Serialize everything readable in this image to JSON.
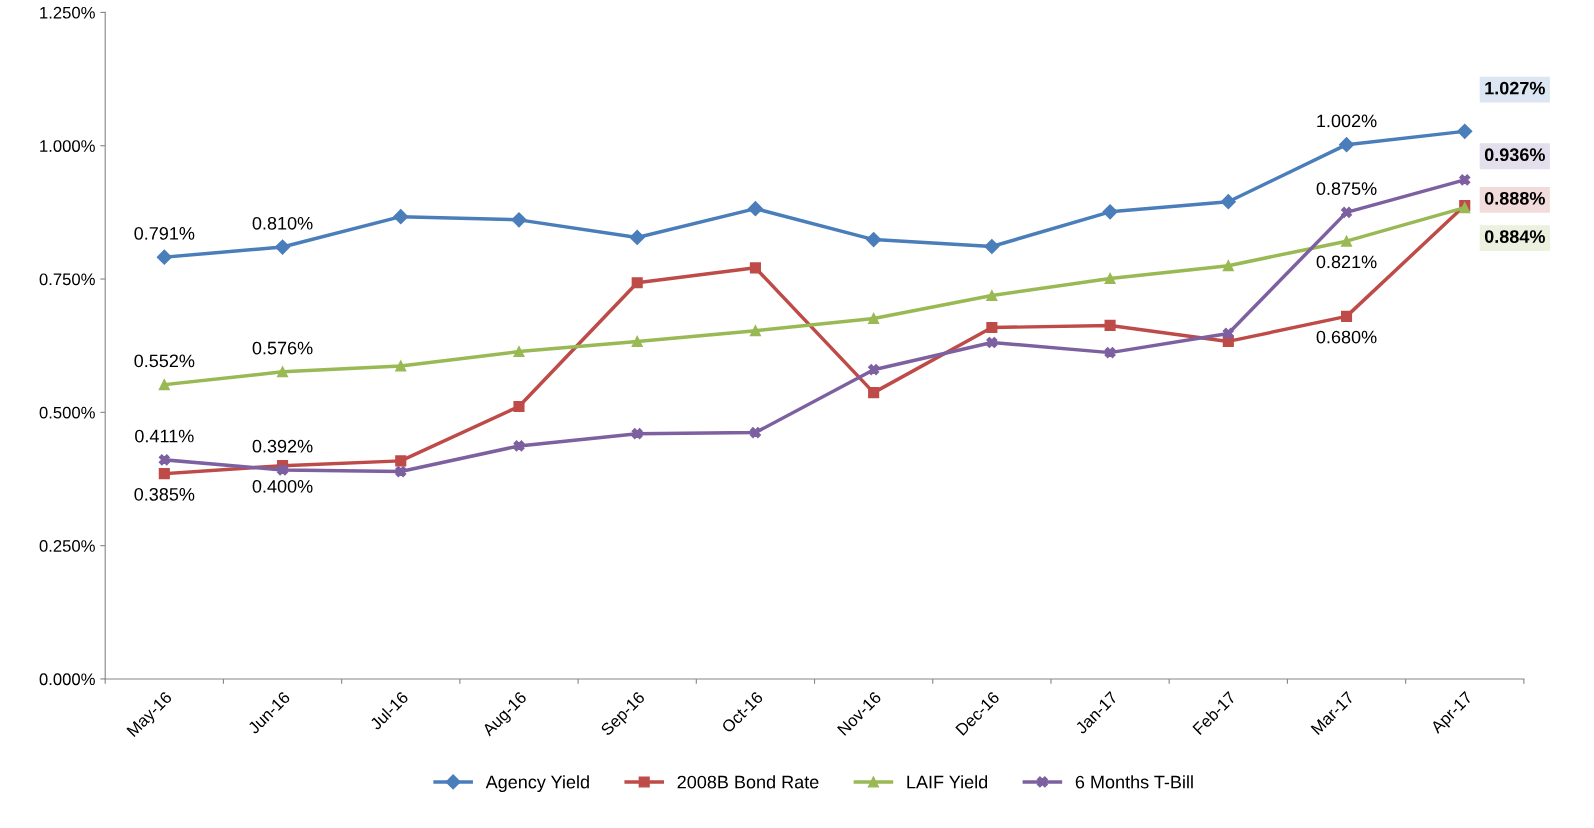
{
  "chart_data": {
    "type": "line",
    "categories": [
      "May-16",
      "Jun-16",
      "Jul-16",
      "Aug-16",
      "Sep-16",
      "Oct-16",
      "Nov-16",
      "Dec-16",
      "Jan-17",
      "Feb-17",
      "Mar-17",
      "Apr-17"
    ],
    "series": [
      {
        "name": "Agency Yield",
        "color": "#4a7ebb",
        "marker": "diamond",
        "values": [
          0.791,
          0.81,
          0.867,
          0.861,
          0.828,
          0.882,
          0.824,
          0.811,
          0.876,
          0.895,
          1.002,
          1.027
        ],
        "value_labels": [
          "0.791%",
          "0.810%",
          null,
          null,
          null,
          null,
          null,
          null,
          null,
          null,
          "1.002%",
          "1.027%"
        ]
      },
      {
        "name": "2008B Bond Rate",
        "color": "#be4b48",
        "marker": "square",
        "values": [
          0.385,
          0.4,
          0.409,
          0.511,
          0.743,
          0.771,
          0.537,
          0.659,
          0.663,
          0.633,
          0.68,
          0.888
        ],
        "value_labels": [
          "0.385%",
          "0.400%",
          null,
          null,
          null,
          null,
          null,
          null,
          null,
          null,
          "0.680%",
          "0.888%"
        ]
      },
      {
        "name": "LAIF Yield",
        "color": "#98b954",
        "marker": "triangle",
        "values": [
          0.552,
          0.576,
          0.587,
          0.614,
          0.633,
          0.653,
          0.676,
          0.719,
          0.751,
          0.775,
          0.821,
          0.884
        ],
        "value_labels": [
          "0.552%",
          "0.576%",
          null,
          null,
          null,
          null,
          null,
          null,
          null,
          null,
          "0.821%",
          "0.884%"
        ]
      },
      {
        "name": "6 Months T-Bill",
        "color": "#7d60a0",
        "marker": "cross",
        "values": [
          0.411,
          0.392,
          0.389,
          0.437,
          0.46,
          0.462,
          0.58,
          0.631,
          0.612,
          0.648,
          0.875,
          0.936
        ],
        "value_labels": [
          "0.411%",
          "0.392%",
          null,
          null,
          null,
          null,
          null,
          null,
          null,
          null,
          "0.875%",
          "0.936%"
        ]
      }
    ],
    "ylim": [
      0,
      1.25
    ],
    "yticks": [
      {
        "value": 0,
        "label": "0.000%"
      },
      {
        "value": 0.25,
        "label": "0.250%"
      },
      {
        "value": 0.5,
        "label": "0.500%"
      },
      {
        "value": 0.75,
        "label": "0.750%"
      },
      {
        "value": 1.0,
        "label": "1.000%"
      },
      {
        "value": 1.25,
        "label": "1.250%"
      }
    ],
    "grid": false,
    "legend": "bottom",
    "line_style": "solid"
  }
}
